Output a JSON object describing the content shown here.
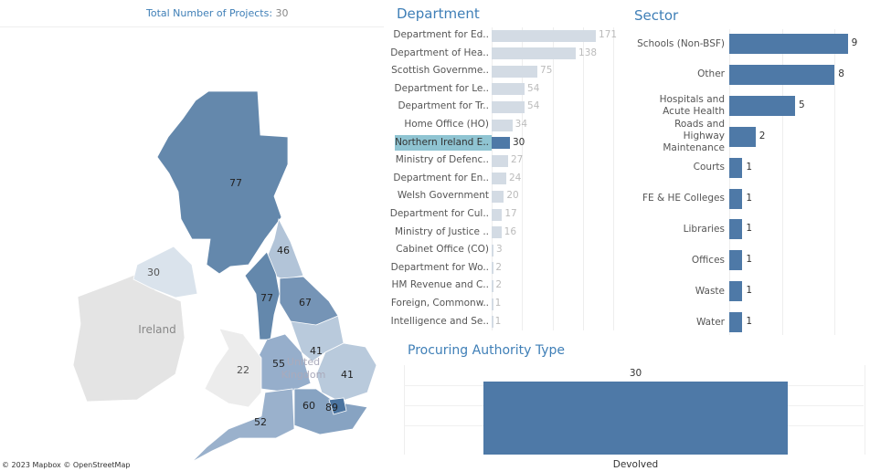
{
  "header": {
    "total_label": "Total Number of Projects:",
    "total_value": "30"
  },
  "map": {
    "attribution": "© 2023 Mapbox  © OpenStreetMap",
    "country_labels": [
      "Ireland",
      "United",
      "Kingdom"
    ],
    "regions": [
      {
        "name": "Scotland",
        "value": 77,
        "color": "#6488ac"
      },
      {
        "name": "North East",
        "value": 46,
        "color": "#b2c4d8"
      },
      {
        "name": "North West",
        "value": 77,
        "color": "#6488ac"
      },
      {
        "name": "Yorkshire and the Humber",
        "value": 67,
        "color": "#7594b6"
      },
      {
        "name": "East Midlands",
        "value": 41,
        "color": "#b9cadc"
      },
      {
        "name": "West Midlands",
        "value": 55,
        "color": "#96aecb"
      },
      {
        "name": "East of England",
        "value": 41,
        "color": "#b9cadc"
      },
      {
        "name": "Wales",
        "value": 22,
        "color": "#ececec"
      },
      {
        "name": "South East",
        "value": 60,
        "color": "#87a3c2"
      },
      {
        "name": "London",
        "value": 89,
        "color": "#4b74a0"
      },
      {
        "name": "South West",
        "value": 52,
        "color": "#9ab1cc"
      },
      {
        "name": "Northern Ireland",
        "value": 30,
        "color": "#dae3ec"
      }
    ]
  },
  "department": {
    "title": "Department",
    "highlight_color": "#4e79a7",
    "base_color": "#d3dbe4",
    "selected_index": 6,
    "items": [
      {
        "label": "Department for Ed..",
        "value": 171
      },
      {
        "label": "Department of Hea..",
        "value": 138
      },
      {
        "label": "Scottish Governme..",
        "value": 75
      },
      {
        "label": "Department for Le..",
        "value": 54
      },
      {
        "label": "Department for Tr..",
        "value": 54
      },
      {
        "label": "Home Office (HO)",
        "value": 34
      },
      {
        "label": "Northern Ireland E..",
        "value": 30
      },
      {
        "label": "Ministry of Defenc..",
        "value": 27
      },
      {
        "label": "Department for En..",
        "value": 24
      },
      {
        "label": "Welsh Government",
        "value": 20
      },
      {
        "label": "Department for Cul..",
        "value": 17
      },
      {
        "label": "Ministry of Justice ..",
        "value": 16
      },
      {
        "label": "Cabinet Office (CO)",
        "value": 3
      },
      {
        "label": "Department for Wo..",
        "value": 2
      },
      {
        "label": "HM Revenue and C..",
        "value": 2
      },
      {
        "label": "Foreign, Commonw..",
        "value": 1
      },
      {
        "label": "Intelligence and Se..",
        "value": 1
      }
    ]
  },
  "sector": {
    "title": "Sector",
    "color": "#4e79a7",
    "items": [
      {
        "label": "Schools (Non-BSF)",
        "value": 9
      },
      {
        "label": "Other",
        "value": 8
      },
      {
        "label": "Hospitals and Acute Health",
        "value": 5
      },
      {
        "label": "Roads and Highway Maintenance",
        "value": 2
      },
      {
        "label": "Courts",
        "value": 1
      },
      {
        "label": "FE & HE Colleges",
        "value": 1
      },
      {
        "label": "Libraries",
        "value": 1
      },
      {
        "label": "Offices",
        "value": 1
      },
      {
        "label": "Waste",
        "value": 1
      },
      {
        "label": "Water",
        "value": 1
      }
    ]
  },
  "procuring": {
    "title": "Procuring Authority Type",
    "color": "#4e79a7",
    "items": [
      {
        "label": "Devolved",
        "value": 30
      }
    ]
  }
}
